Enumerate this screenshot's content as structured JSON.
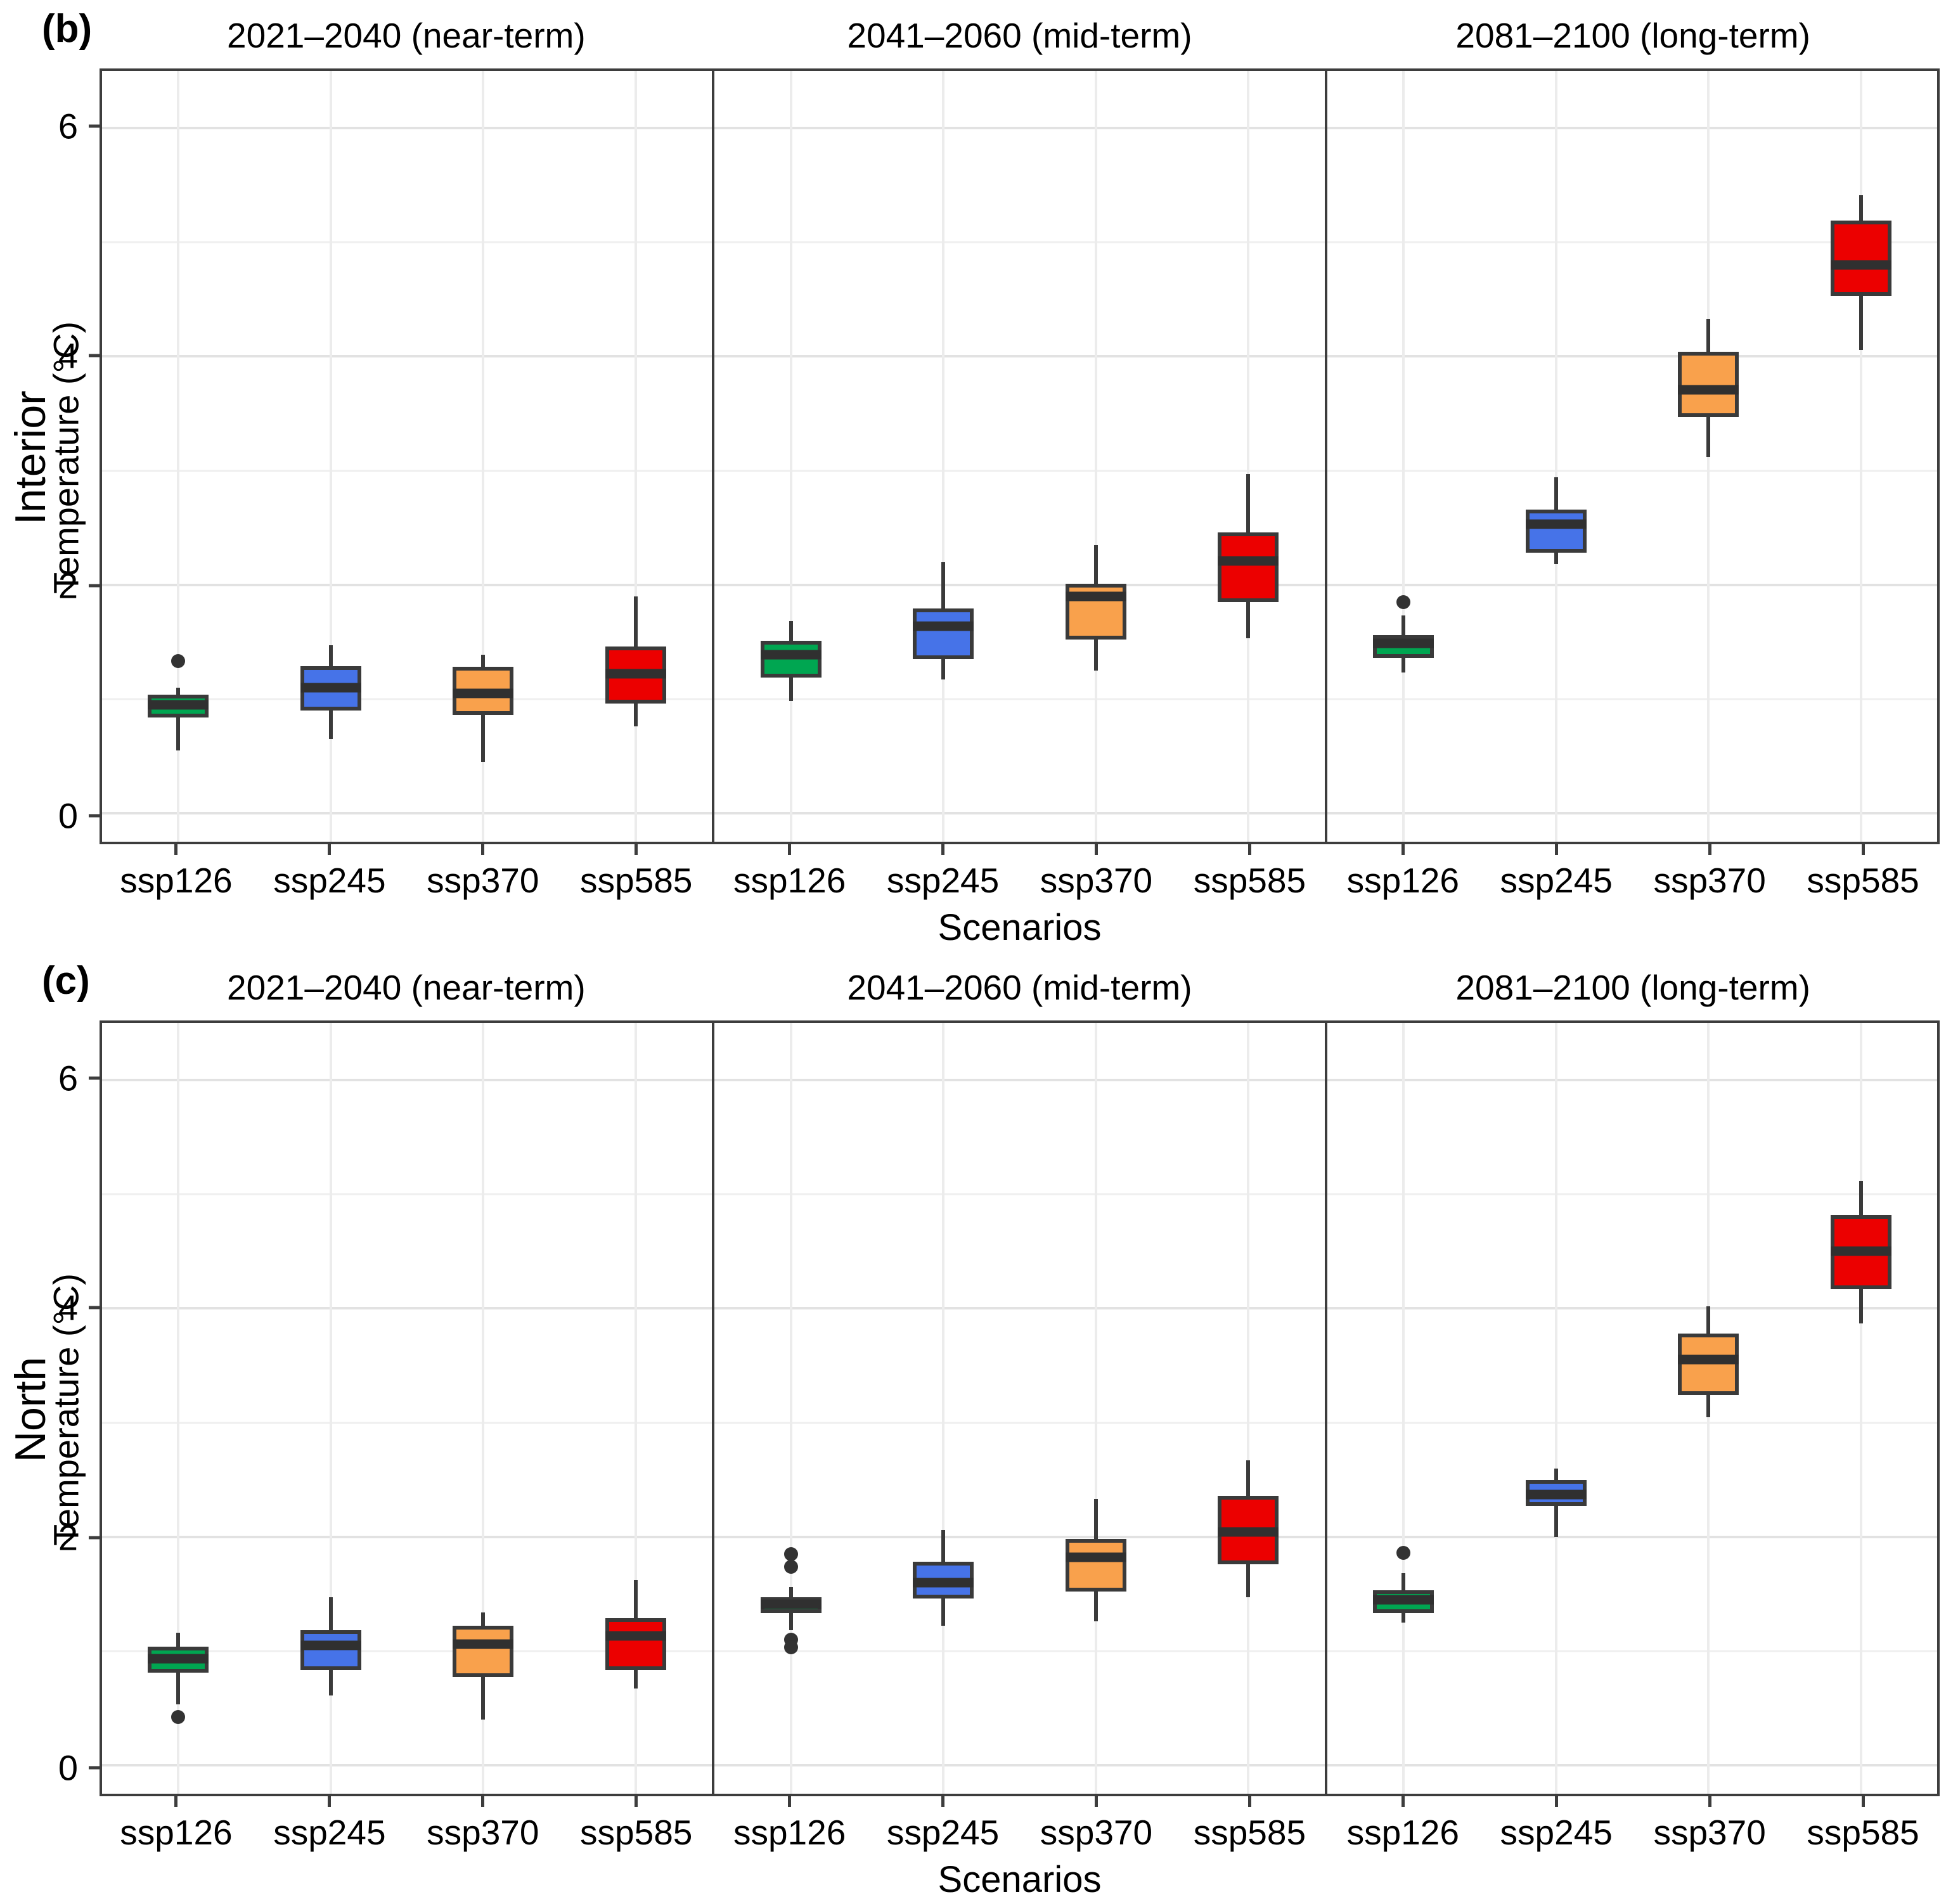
{
  "chart_data": {
    "type": "boxplot-grid",
    "scenarios": [
      "ssp126",
      "ssp245",
      "ssp370",
      "ssp585"
    ],
    "colors": {
      "ssp126": "#00A651",
      "ssp245": "#4673E8",
      "ssp370": "#F9A14C",
      "ssp585": "#EC0000",
      "box_border": "#3a3a3a",
      "median": "#303030",
      "outlier": "#333333"
    },
    "grid": "on",
    "legend": "none",
    "panels": [
      {
        "tag": "(b)",
        "region": "Interior",
        "ylabel": "Temperature (°C)",
        "xlabel": "Scenarios",
        "yticks": [
          0,
          2,
          4,
          6
        ],
        "yminor": [
          1,
          3,
          5
        ],
        "ylim": [
          -0.25,
          6.5
        ],
        "facets": [
          {
            "title": "2021–2040 (near-term)",
            "boxes": [
              {
                "scenario": "ssp126",
                "lo": 0.55,
                "q1": 0.84,
                "med": 0.95,
                "q3": 1.04,
                "hi": 1.1,
                "outliers": [
                  1.33
                ]
              },
              {
                "scenario": "ssp245",
                "lo": 0.65,
                "q1": 0.9,
                "med": 1.1,
                "q3": 1.29,
                "hi": 1.47,
                "outliers": []
              },
              {
                "scenario": "ssp370",
                "lo": 0.45,
                "q1": 0.86,
                "med": 1.05,
                "q3": 1.28,
                "hi": 1.39,
                "outliers": []
              },
              {
                "scenario": "ssp585",
                "lo": 0.76,
                "q1": 0.96,
                "med": 1.22,
                "q3": 1.46,
                "hi": 1.9,
                "outliers": []
              }
            ]
          },
          {
            "title": "2041–2060 (mid-term)",
            "boxes": [
              {
                "scenario": "ssp126",
                "lo": 0.98,
                "q1": 1.19,
                "med": 1.39,
                "q3": 1.51,
                "hi": 1.68,
                "outliers": []
              },
              {
                "scenario": "ssp245",
                "lo": 1.17,
                "q1": 1.35,
                "med": 1.64,
                "q3": 1.79,
                "hi": 2.2,
                "outliers": []
              },
              {
                "scenario": "ssp370",
                "lo": 1.25,
                "q1": 1.52,
                "med": 1.9,
                "q3": 2.01,
                "hi": 2.35,
                "outliers": []
              },
              {
                "scenario": "ssp585",
                "lo": 1.53,
                "q1": 1.85,
                "med": 2.21,
                "q3": 2.46,
                "hi": 2.97,
                "outliers": []
              }
            ]
          },
          {
            "title": "2081–2100 (long-term)",
            "boxes": [
              {
                "scenario": "ssp126",
                "lo": 1.23,
                "q1": 1.36,
                "med": 1.49,
                "q3": 1.56,
                "hi": 1.73,
                "outliers": [
                  1.85
                ]
              },
              {
                "scenario": "ssp245",
                "lo": 2.18,
                "q1": 2.28,
                "med": 2.53,
                "q3": 2.66,
                "hi": 2.94,
                "outliers": []
              },
              {
                "scenario": "ssp370",
                "lo": 3.12,
                "q1": 3.47,
                "med": 3.71,
                "q3": 4.04,
                "hi": 4.33,
                "outliers": []
              },
              {
                "scenario": "ssp585",
                "lo": 4.06,
                "q1": 4.53,
                "med": 4.8,
                "q3": 5.19,
                "hi": 5.41,
                "outliers": []
              }
            ]
          }
        ]
      },
      {
        "tag": "(c)",
        "region": "North",
        "ylabel": "Temperature (°C)",
        "xlabel": "Scenarios",
        "yticks": [
          0,
          2,
          4,
          6
        ],
        "yminor": [
          1,
          3,
          5
        ],
        "ylim": [
          -0.25,
          6.5
        ],
        "facets": [
          {
            "title": "2021–2040 (near-term)",
            "boxes": [
              {
                "scenario": "ssp126",
                "lo": 0.53,
                "q1": 0.81,
                "med": 0.93,
                "q3": 1.04,
                "hi": 1.16,
                "outliers": [
                  0.42
                ]
              },
              {
                "scenario": "ssp245",
                "lo": 0.61,
                "q1": 0.83,
                "med": 1.05,
                "q3": 1.18,
                "hi": 1.47,
                "outliers": []
              },
              {
                "scenario": "ssp370",
                "lo": 0.4,
                "q1": 0.77,
                "med": 1.06,
                "q3": 1.22,
                "hi": 1.34,
                "outliers": []
              },
              {
                "scenario": "ssp585",
                "lo": 0.67,
                "q1": 0.83,
                "med": 1.13,
                "q3": 1.29,
                "hi": 1.62,
                "outliers": []
              }
            ]
          },
          {
            "title": "2041–2060 (mid-term)",
            "boxes": [
              {
                "scenario": "ssp126",
                "lo": 1.18,
                "q1": 1.33,
                "med": 1.41,
                "q3": 1.47,
                "hi": 1.56,
                "outliers": [
                  1.85,
                  1.74,
                  1.1,
                  1.03
                ]
              },
              {
                "scenario": "ssp245",
                "lo": 1.22,
                "q1": 1.46,
                "med": 1.6,
                "q3": 1.78,
                "hi": 2.06,
                "outliers": []
              },
              {
                "scenario": "ssp370",
                "lo": 1.26,
                "q1": 1.52,
                "med": 1.82,
                "q3": 1.98,
                "hi": 2.33,
                "outliers": []
              },
              {
                "scenario": "ssp585",
                "lo": 1.47,
                "q1": 1.76,
                "med": 2.04,
                "q3": 2.36,
                "hi": 2.67,
                "outliers": []
              }
            ]
          },
          {
            "title": "2081–2100 (long-term)",
            "boxes": [
              {
                "scenario": "ssp126",
                "lo": 1.25,
                "q1": 1.33,
                "med": 1.45,
                "q3": 1.53,
                "hi": 1.68,
                "outliers": [
                  1.86
                ]
              },
              {
                "scenario": "ssp245",
                "lo": 2.0,
                "q1": 2.27,
                "med": 2.37,
                "q3": 2.5,
                "hi": 2.6,
                "outliers": []
              },
              {
                "scenario": "ssp370",
                "lo": 3.05,
                "q1": 3.24,
                "med": 3.55,
                "q3": 3.78,
                "hi": 4.02,
                "outliers": []
              },
              {
                "scenario": "ssp585",
                "lo": 3.87,
                "q1": 4.17,
                "med": 4.5,
                "q3": 4.82,
                "hi": 5.12,
                "outliers": []
              }
            ]
          }
        ]
      }
    ]
  }
}
